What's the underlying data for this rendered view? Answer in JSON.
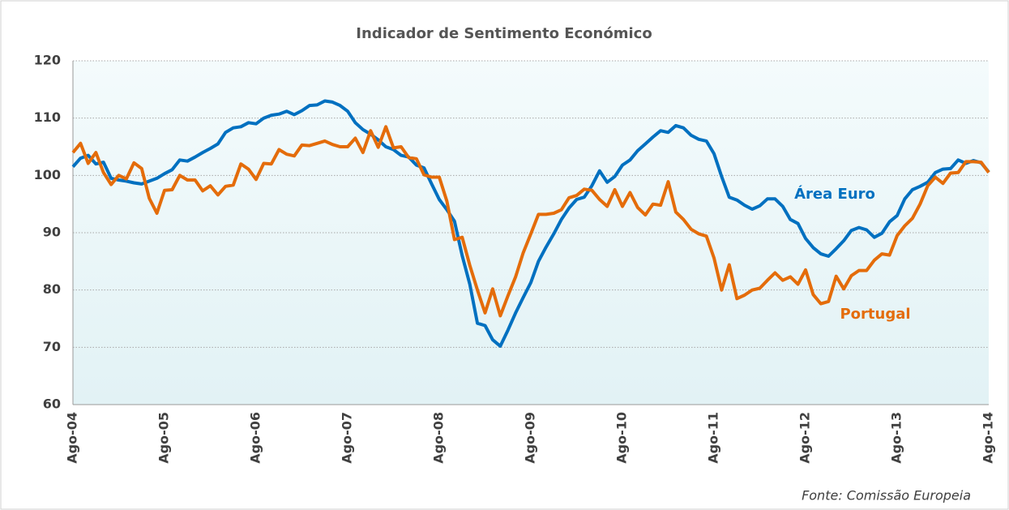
{
  "chart_data": {
    "type": "line",
    "title": "Indicador de Sentimento Económico",
    "source": "Fonte: Comissão Europeia",
    "categories": [
      "Ago-04",
      null,
      null,
      null,
      null,
      null,
      null,
      null,
      null,
      null,
      null,
      null,
      "Ago-05",
      null,
      null,
      null,
      null,
      null,
      null,
      null,
      null,
      null,
      null,
      null,
      "Ago-06",
      null,
      null,
      null,
      null,
      null,
      null,
      null,
      null,
      null,
      null,
      null,
      "Ago-07",
      null,
      null,
      null,
      null,
      null,
      null,
      null,
      null,
      null,
      null,
      null,
      "Ago-08",
      null,
      null,
      null,
      null,
      null,
      null,
      null,
      null,
      null,
      null,
      null,
      "Ago-09",
      null,
      null,
      null,
      null,
      null,
      null,
      null,
      null,
      null,
      null,
      null,
      "Ago-10",
      null,
      null,
      null,
      null,
      null,
      null,
      null,
      null,
      null,
      null,
      null,
      "Ago-11",
      null,
      null,
      null,
      null,
      null,
      null,
      null,
      null,
      null,
      null,
      null,
      "Ago-12",
      null,
      null,
      null,
      null,
      null,
      null,
      null,
      null,
      null,
      null,
      null,
      "Ago-13",
      null,
      null,
      null,
      null,
      null,
      null,
      null,
      null,
      null,
      null,
      null,
      "Ago-14"
    ],
    "series": [
      {
        "name": "Área Euro",
        "color": "#0070c0",
        "values": [
          101.5,
          103,
          103.5,
          102,
          102.3,
          99.5,
          99.2,
          99,
          98.7,
          98.5,
          99,
          99.5,
          100.3,
          101,
          102.7,
          102.5,
          103.2,
          104,
          104.7,
          105.5,
          107.5,
          108.3,
          108.5,
          109.2,
          109,
          110,
          110.5,
          110.7,
          111.2,
          110.6,
          111.3,
          112.2,
          112.3,
          113,
          112.8,
          112.2,
          111.2,
          109.2,
          108,
          107.2,
          106.2,
          105,
          104.5,
          103.5,
          103.2,
          101.8,
          101.3,
          98.5,
          95.8,
          94,
          92,
          86,
          81,
          74.2,
          73.8,
          71.3,
          70.2,
          73,
          76,
          78.7,
          81.3,
          85,
          87.5,
          89.8,
          92.3,
          94.3,
          95.8,
          96.2,
          98.2,
          100.8,
          98.8,
          99.8,
          101.8,
          102.7,
          104.3,
          105.5,
          106.7,
          107.8,
          107.5,
          108.7,
          108.3,
          107,
          106.3,
          106,
          103.8,
          99.8,
          96.2,
          95.7,
          94.8,
          94.1,
          94.7,
          95.9,
          95.9,
          94.6,
          92.3,
          91.6,
          89,
          87.4,
          86.3,
          85.9,
          87.2,
          88.6,
          90.4,
          90.9,
          90.5,
          89.2,
          89.9,
          91.9,
          93,
          95.9,
          97.5,
          98.1,
          98.8,
          100.5,
          101.1,
          101.2,
          102.7,
          102.1,
          102.6,
          102.2,
          100.6
        ]
      },
      {
        "name": "Portugal",
        "color": "#e46c0a",
        "values": [
          104,
          105.6,
          102.1,
          104,
          100.5,
          98.4,
          100,
          99.4,
          102.2,
          101.2,
          96,
          93.4,
          97.4,
          97.5,
          100,
          99.2,
          99.2,
          97.3,
          98.2,
          96.6,
          98.1,
          98.3,
          102,
          101.1,
          99.3,
          102.1,
          102,
          104.5,
          103.7,
          103.4,
          105.3,
          105.2,
          105.6,
          106,
          105.4,
          105,
          105,
          106.5,
          104,
          107.8,
          104.9,
          108.5,
          104.8,
          105,
          103.1,
          102.9,
          100.1,
          99.7,
          99.7,
          95.5,
          88.8,
          89.2,
          84.3,
          80,
          76,
          80.2,
          75.5,
          79,
          82.3,
          86.5,
          89.8,
          93.2,
          93.2,
          93.4,
          94,
          96.1,
          96.5,
          97.6,
          97.4,
          95.8,
          94.6,
          97.5,
          94.6,
          97,
          94.4,
          93.1,
          95,
          94.8,
          98.9,
          93.6,
          92.3,
          90.6,
          89.8,
          89.4,
          85.6,
          80,
          84.4,
          78.5,
          79.1,
          80,
          80.3,
          81.7,
          83,
          81.7,
          82.3,
          81,
          83.5,
          79.2,
          77.6,
          78,
          82.4,
          80.2,
          82.5,
          83.4,
          83.4,
          85.2,
          86.3,
          86.1,
          89.5,
          91.2,
          92.5,
          95,
          98.2,
          99.7,
          98.6,
          100.4,
          100.5,
          102.4,
          102.4,
          102.3,
          100.5
        ]
      }
    ],
    "ylim": [
      60,
      120
    ],
    "yticks": [
      60,
      70,
      80,
      90,
      100,
      110,
      120
    ],
    "grid": true
  }
}
